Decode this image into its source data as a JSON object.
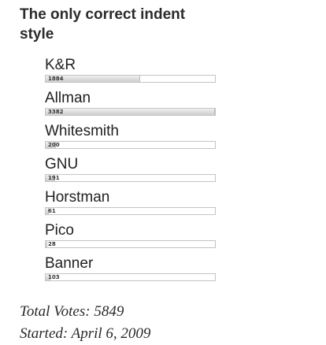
{
  "poll": {
    "title": "The only correct indent style",
    "options": [
      {
        "label": "K&R",
        "votes": "1884",
        "share": 0.557
      },
      {
        "label": "Allman",
        "votes": "3382",
        "share": 1.0
      },
      {
        "label": "Whitesmith",
        "votes": "200",
        "share": 0.059
      },
      {
        "label": "GNU",
        "votes": "191",
        "share": 0.056
      },
      {
        "label": "Horstman",
        "votes": "61",
        "share": 0.018
      },
      {
        "label": "Pico",
        "votes": "28",
        "share": 0.008
      },
      {
        "label": "Banner",
        "votes": "103",
        "share": 0.03
      }
    ],
    "total_votes": "Total Votes: 5849",
    "started": "Started: April 6, 2009"
  }
}
